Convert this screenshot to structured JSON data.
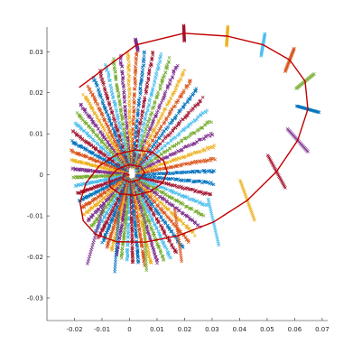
{
  "chart_data": {
    "type": "scatter",
    "title": "",
    "xlabel": "",
    "ylabel": "",
    "xlim": [
      -0.03,
      0.072
    ],
    "ylim": [
      -0.0355,
      0.036
    ],
    "x_ticks": [
      "-0.02",
      "-0.01",
      "0",
      "0.01",
      "0.02",
      "0.03",
      "0.04",
      "0.05",
      "0.06",
      "0.07"
    ],
    "y_ticks": [
      "0.03",
      "0.02",
      "0.01",
      "0",
      "-0.01",
      "-0.02",
      "-0.03"
    ],
    "x_tick_values": [
      -0.02,
      -0.01,
      0,
      0.01,
      0.02,
      0.03,
      0.04,
      0.05,
      0.06,
      0.07
    ],
    "y_tick_values": [
      0.03,
      0.02,
      0.01,
      0,
      -0.01,
      -0.02,
      -0.03
    ],
    "grid": false,
    "legend": "none",
    "marker": "x",
    "series": [
      {
        "role": "spiral-path",
        "type": "line",
        "color": "#c00000",
        "x": [
          -0.0183,
          0.0026,
          0.0198,
          0.0355,
          0.0485,
          0.0582,
          0.0638,
          0.0648,
          0.0611,
          0.0534,
          0.0428,
          0.0305,
          0.0177,
          0.0057,
          -0.0046,
          -0.0123,
          -0.0168,
          -0.018,
          -0.0158,
          -0.0111,
          -0.0046,
          0.0023,
          0.0084,
          0.0124,
          0.0137,
          0.012,
          0.0077,
          0.002,
          -0.0035,
          -0.007,
          -0.0074,
          -0.0046,
          0.0,
          0.0041,
          0.0055,
          0.0035,
          0.0,
          -0.0025,
          -0.002,
          0.0
        ],
        "y": [
          0.0213,
          0.0317,
          0.0345,
          0.0338,
          0.0317,
          0.028,
          0.0228,
          0.016,
          0.0084,
          0.0008,
          -0.0062,
          -0.0115,
          -0.0148,
          -0.0164,
          -0.0163,
          -0.0145,
          -0.0112,
          -0.0067,
          -0.002,
          0.0021,
          0.005,
          0.0061,
          0.0055,
          0.0034,
          0.0007,
          -0.002,
          -0.004,
          -0.005,
          -0.0046,
          -0.003,
          -0.0008,
          0.0013,
          0.0025,
          0.002,
          0.0005,
          -0.0012,
          -0.0018,
          -0.001,
          0.0003,
          0.0
        ]
      },
      {
        "role": "radial-scatter",
        "type": "scatter",
        "center": [
          0.0005,
          0.0
        ],
        "ray_count": 64,
        "palette": [
          "#0072bd",
          "#d95319",
          "#edb120",
          "#7e2f8e",
          "#77ac30",
          "#4dbeee",
          "#a2142f"
        ]
      }
    ]
  }
}
